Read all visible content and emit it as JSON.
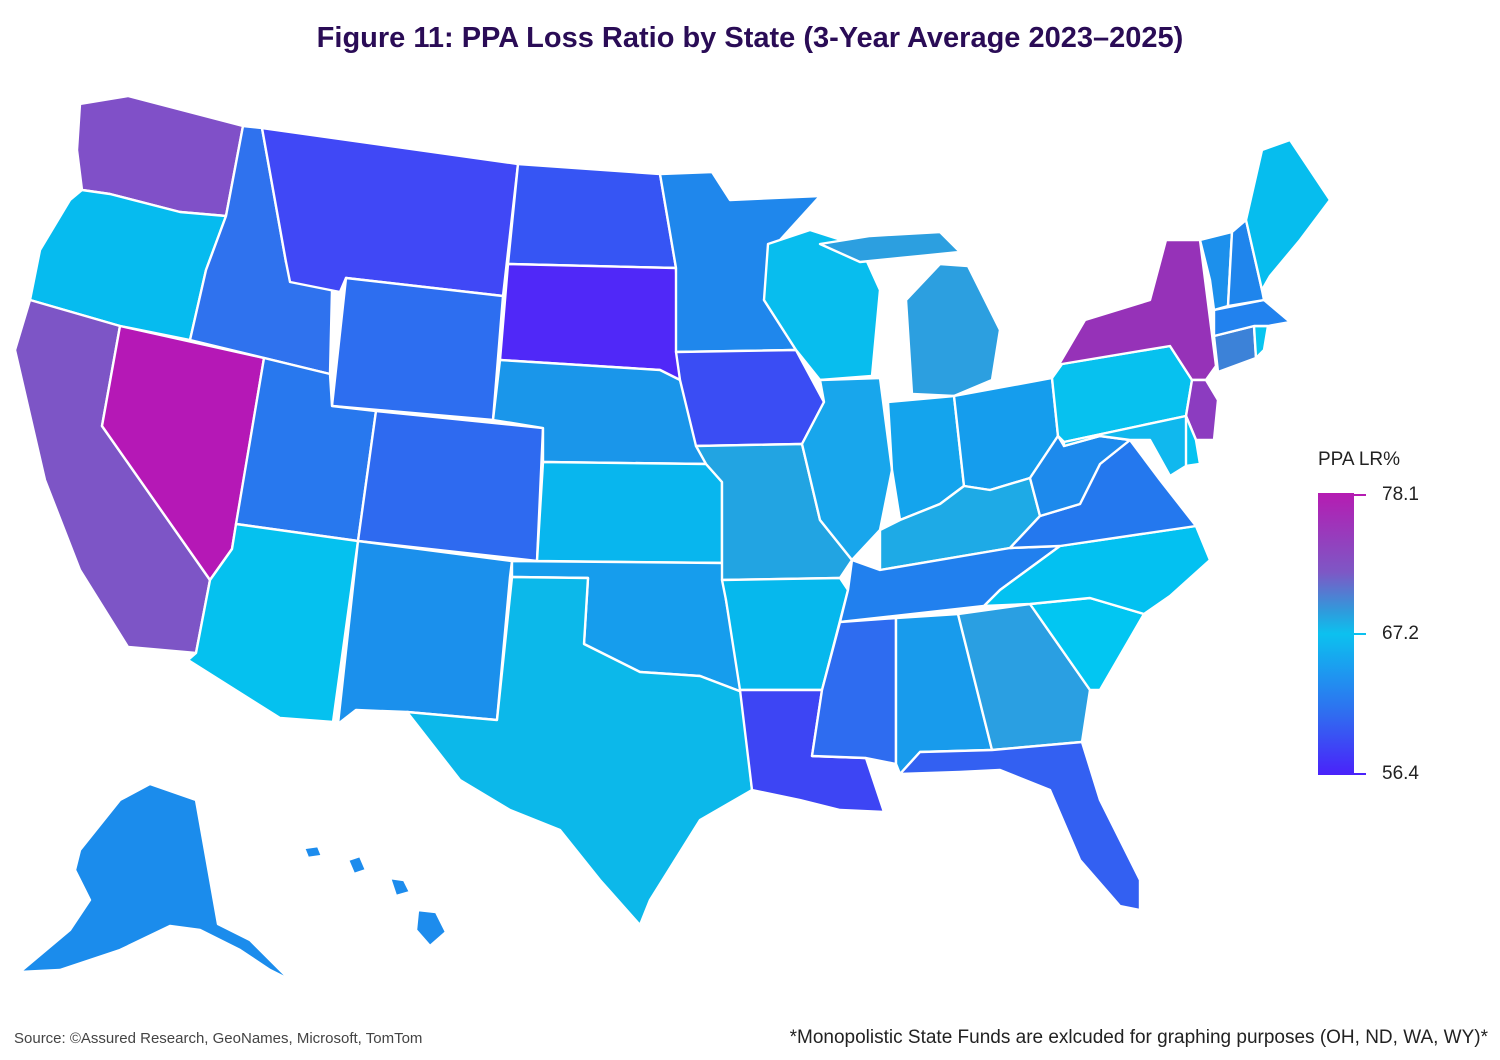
{
  "title": "Figure 11: PPA Loss Ratio by State (3-Year Average 2023–2025)",
  "legend": {
    "title": "PPA LR%",
    "max": "78.1",
    "mid": "67.2",
    "min": "56.4",
    "max_color": "#b51cb2",
    "mid_color": "#0cc1ef",
    "min_color": "#4a22fa"
  },
  "colors": {
    "WA": "#8050c8",
    "OR": "#06bbef",
    "CA": "#7d55c6",
    "NV": "#b518b6",
    "ID": "#2f72ee",
    "MT": "#4048f6",
    "WY": "#2d6ef0",
    "UT": "#2878ee",
    "CO": "#2e6af0",
    "AZ": "#05c1ef",
    "NM": "#1b90ec",
    "ND": "#3655f4",
    "SD": "#5028f8",
    "NE": "#1a96ea",
    "KS": "#08b6ee",
    "OK": "#169ded",
    "TX": "#0cb8ea",
    "MN": "#1f87ec",
    "IA": "#3a4df4",
    "MO": "#22a4e2",
    "AR": "#06b8ed",
    "LA": "#3d45f4",
    "WI": "#08bdee",
    "IL": "#18a6ec",
    "MI": "#2c9fe0",
    "IN": "#14a4ed",
    "OH": "#159ded",
    "KY": "#1eaae6",
    "TN": "#2180ee",
    "MS": "#2e6cf0",
    "AL": "#189bec",
    "GA": "#2a9fe2",
    "FL": "#3360f2",
    "SC": "#02c6f2",
    "NC": "#03c1f1",
    "VA": "#2478ee",
    "WV": "#1d8aec",
    "PA": "#07c1ef",
    "NY": "#9632b8",
    "NJ": "#8c3cc0",
    "DE": "#06c3f1",
    "MD": "#10b8ee",
    "CT": "#3c82d8",
    "RI": "#08c4f0",
    "MA": "#2282ee",
    "VT": "#1c90ec",
    "NH": "#1f85ec",
    "ME": "#06bdee",
    "AK": "#1b8cec",
    "HI": "#1d8ced"
  },
  "source": "Source: ©Assured Research, GeoNames, Microsoft, TomTom",
  "note": "*Monopolistic State Funds are exlcuded for graphing purposes (OH, ND, WA, WY)*"
}
